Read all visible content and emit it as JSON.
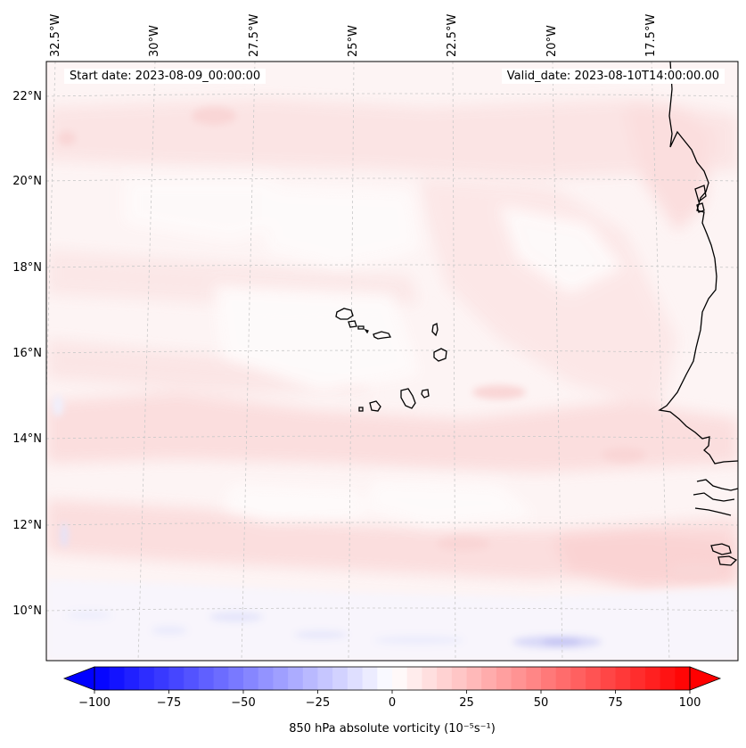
{
  "map": {
    "start_date": "Start date: 2023-08-09_00:00:00",
    "valid_date": "Valid_date: 2023-08-10T14:00:00.00",
    "lon_ticks": [
      "32.5°W",
      "30°W",
      "27.5°W",
      "25°W",
      "22.5°W",
      "20°W",
      "17.5°W"
    ],
    "lat_ticks": [
      "22°N",
      "20°N",
      "18°N",
      "16°N",
      "14°N",
      "12°N",
      "10°N"
    ],
    "field": "850 hPa absolute vorticity",
    "colors": {
      "land_line": "#000000",
      "grid_line": "#bbbbbb",
      "background_field": "#fdf3f3",
      "positive_max": "#ff0000",
      "negative_max": "#0000ff"
    }
  },
  "colorbar": {
    "label": "850 hPa absolute vorticity (10⁻⁵s⁻¹)",
    "ticks": [
      "−100",
      "−75",
      "−50",
      "−25",
      "0",
      "25",
      "50",
      "75",
      "100"
    ],
    "min": -100,
    "max": 100,
    "extend": "both"
  }
}
